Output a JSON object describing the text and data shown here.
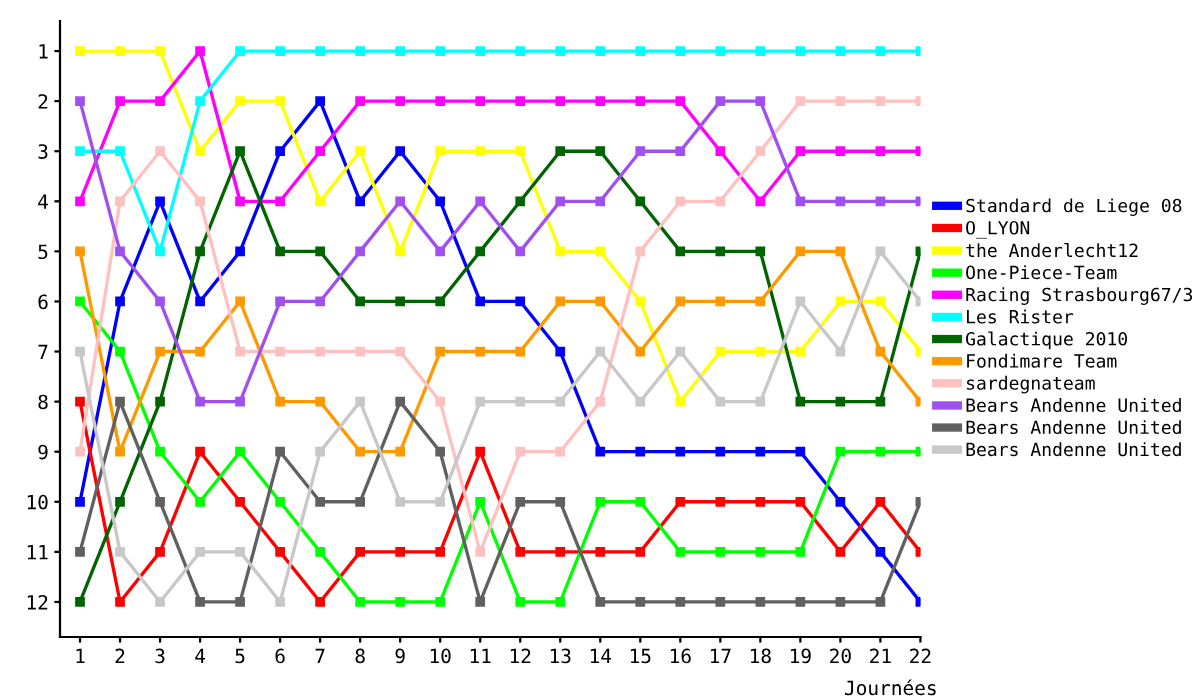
{
  "chart_data": {
    "type": "line",
    "xlabel": "Journées",
    "x": [
      1,
      2,
      3,
      4,
      5,
      6,
      7,
      8,
      9,
      10,
      11,
      12,
      13,
      14,
      15,
      16,
      17,
      18,
      19,
      20,
      21,
      22
    ],
    "xlim": [
      0.5,
      22
    ],
    "xticks": [
      1,
      2,
      3,
      4,
      5,
      6,
      7,
      8,
      9,
      10,
      11,
      12,
      13,
      14,
      15,
      16,
      17,
      18,
      19,
      20,
      21,
      22
    ],
    "ylim": [
      12.7,
      0.4
    ],
    "yticks": [
      1,
      2,
      3,
      4,
      5,
      6,
      7,
      8,
      9,
      10,
      11,
      12
    ],
    "grid": false,
    "legend": "right",
    "marker": "square",
    "line_style": "solid",
    "series": [
      {
        "name": "Standard de Liege 08",
        "color": "#0000ff",
        "values": [
          10,
          6,
          4,
          6,
          5,
          3,
          2,
          4,
          3,
          4,
          6,
          6,
          7,
          9,
          9,
          9,
          9,
          9,
          9,
          10,
          11,
          12
        ]
      },
      {
        "name": "O_LYON",
        "color": "#ff0000",
        "values": [
          8,
          12,
          11,
          9,
          10,
          11,
          12,
          11,
          11,
          11,
          9,
          11,
          11,
          11,
          11,
          10,
          10,
          10,
          10,
          11,
          10,
          11
        ]
      },
      {
        "name": "the Anderlecht12",
        "color": "#ffff00",
        "values": [
          1,
          1,
          1,
          3,
          2,
          2,
          4,
          3,
          5,
          3,
          3,
          3,
          5,
          5,
          6,
          8,
          7,
          7,
          7,
          6,
          6,
          7
        ]
      },
      {
        "name": "One-Piece-Team",
        "color": "#00ff00",
        "values": [
          6,
          7,
          9,
          10,
          9,
          10,
          11,
          12,
          12,
          12,
          10,
          12,
          12,
          10,
          10,
          11,
          11,
          11,
          11,
          9,
          9,
          9
        ]
      },
      {
        "name": "Racing Strasbourg67/3",
        "color": "#ff00ff",
        "values": [
          4,
          2,
          2,
          1,
          4,
          4,
          3,
          2,
          2,
          2,
          2,
          2,
          2,
          2,
          2,
          2,
          3,
          4,
          3,
          3,
          3,
          3
        ]
      },
      {
        "name": "Les Rister",
        "color": "#00ffff",
        "values": [
          3,
          3,
          5,
          2,
          1,
          1,
          1,
          1,
          1,
          1,
          1,
          1,
          1,
          1,
          1,
          1,
          1,
          1,
          1,
          1,
          1,
          1
        ]
      },
      {
        "name": "Galactique 2010",
        "color": "#006400",
        "values": [
          12,
          10,
          8,
          5,
          3,
          5,
          5,
          6,
          6,
          6,
          5,
          4,
          3,
          3,
          4,
          5,
          5,
          5,
          8,
          8,
          8,
          5
        ]
      },
      {
        "name": "Fondimare Team",
        "color": "#ff9900",
        "values": [
          5,
          9,
          7,
          7,
          6,
          8,
          8,
          9,
          9,
          7,
          7,
          7,
          6,
          6,
          7,
          6,
          6,
          6,
          5,
          5,
          7,
          8
        ]
      },
      {
        "name": "sardegnateam",
        "color": "#ffc0c0",
        "values": [
          9,
          4,
          3,
          4,
          7,
          7,
          7,
          7,
          7,
          8,
          11,
          9,
          9,
          8,
          5,
          4,
          4,
          3,
          2,
          2,
          2,
          2
        ]
      },
      {
        "name": "Bears Andenne United",
        "color": "#a050f0",
        "values": [
          2,
          5,
          6,
          8,
          8,
          6,
          6,
          5,
          4,
          5,
          4,
          5,
          4,
          4,
          3,
          3,
          2,
          2,
          4,
          4,
          4,
          4
        ]
      },
      {
        "name": "Bears Andenne United",
        "color": "#606060",
        "values": [
          11,
          8,
          10,
          12,
          12,
          9,
          10,
          10,
          8,
          9,
          12,
          10,
          10,
          12,
          12,
          12,
          12,
          12,
          12,
          12,
          12,
          10
        ]
      },
      {
        "name": "Bears Andenne United",
        "color": "#c8c8c8",
        "values": [
          7,
          11,
          12,
          11,
          11,
          12,
          9,
          8,
          10,
          10,
          8,
          8,
          8,
          7,
          8,
          7,
          8,
          8,
          6,
          7,
          5,
          6
        ]
      }
    ]
  }
}
